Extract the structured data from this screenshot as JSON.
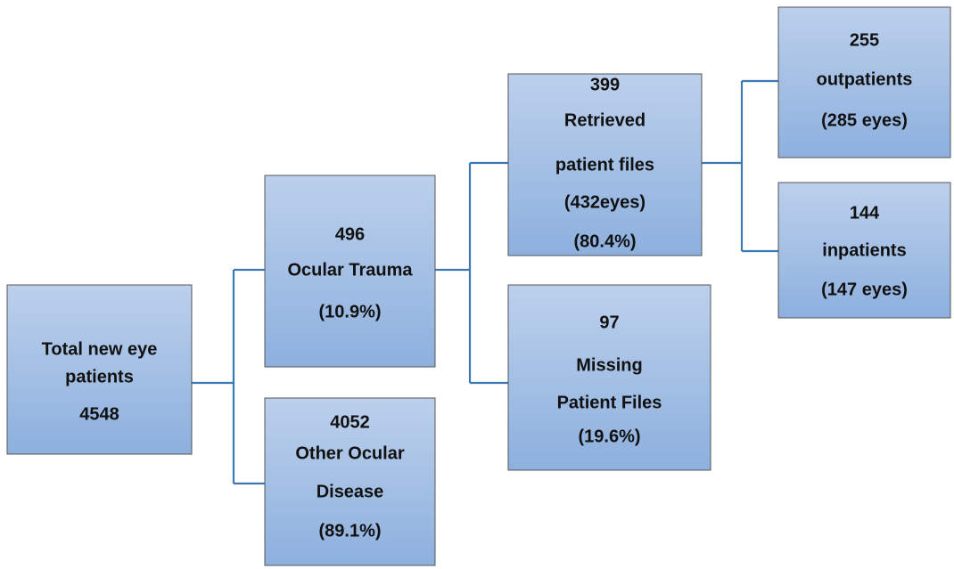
{
  "nodes": [
    {
      "lines": [
        "Total new eye",
        "patients",
        "4548"
      ]
    },
    {
      "lines": [
        "496",
        "Ocular Trauma",
        "(10.9%)"
      ]
    },
    {
      "lines": [
        "4052",
        "Other Ocular",
        "Disease",
        "(89.1%)"
      ]
    },
    {
      "lines": [
        "399",
        "Retrieved",
        "patient files",
        "(432eyes)",
        "(80.4%)"
      ]
    },
    {
      "lines": [
        "97",
        "Missing",
        "Patient Files",
        "(19.6%)"
      ]
    },
    {
      "lines": [
        "255",
        "outpatients",
        "(285 eyes)"
      ]
    },
    {
      "lines": [
        "144",
        "inpatients",
        "(147 eyes)"
      ]
    }
  ]
}
